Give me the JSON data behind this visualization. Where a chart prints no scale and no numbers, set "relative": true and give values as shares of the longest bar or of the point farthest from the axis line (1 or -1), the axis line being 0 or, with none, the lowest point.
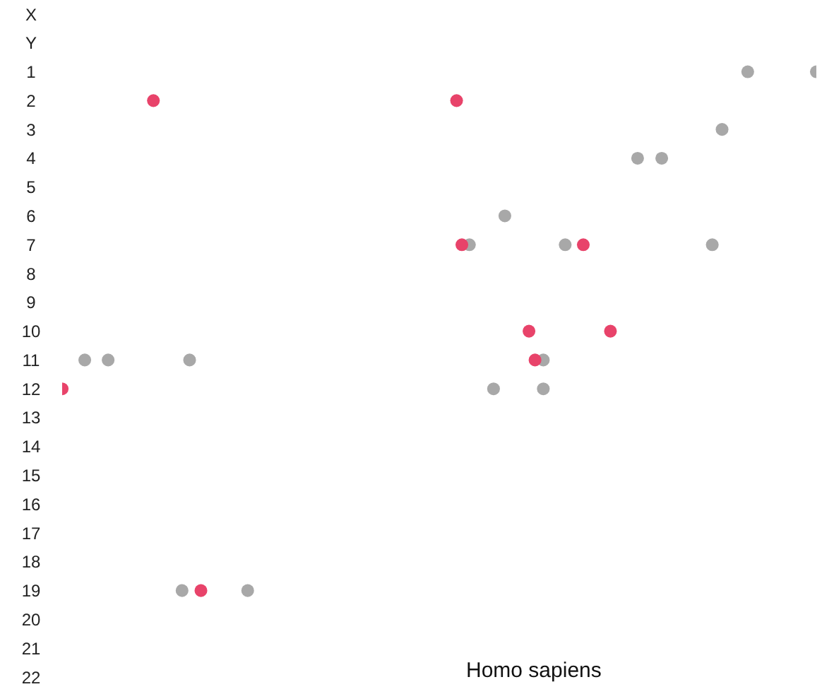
{
  "chart_data": {
    "type": "scatter",
    "orientation": "horizontal",
    "relative": true,
    "marker": "circle",
    "grid": false,
    "legend": false,
    "categories": [
      "X",
      "Y",
      "1",
      "2",
      "3",
      "4",
      "5",
      "6",
      "7",
      "8",
      "9",
      "10",
      "11",
      "12",
      "13",
      "14",
      "15",
      "16",
      "17",
      "18",
      "19",
      "20",
      "21",
      "22"
    ],
    "annotations": [
      "Homo sapiens"
    ],
    "series": [
      {
        "color": "#a8a8a8",
        "values": [
          null,
          null,
          0.909,
          null,
          0.875,
          0.763,
          null,
          0.587,
          0.54,
          null,
          null,
          null,
          0.03,
          0.572,
          null,
          null,
          null,
          null,
          null,
          null,
          0.159,
          null,
          null,
          null
        ]
      },
      {
        "color": "#a8a8a8",
        "values": [
          null,
          null,
          1,
          null,
          null,
          0.795,
          null,
          null,
          0.667,
          null,
          null,
          null,
          0.061,
          0.638,
          null,
          null,
          null,
          null,
          null,
          null,
          0.246,
          null,
          null,
          null
        ]
      },
      {
        "color": "#a8a8a8",
        "values": [
          null,
          null,
          null,
          null,
          null,
          null,
          null,
          null,
          0.862,
          null,
          null,
          null,
          0.169,
          null,
          null,
          null,
          null,
          null,
          null,
          null,
          null,
          null,
          null,
          null
        ]
      },
      {
        "color": "#a8a8a8",
        "values": [
          null,
          null,
          null,
          null,
          null,
          null,
          null,
          null,
          null,
          null,
          null,
          null,
          0.638,
          null,
          null,
          null,
          null,
          null,
          null,
          null,
          null,
          null,
          null,
          null
        ]
      },
      {
        "color": "#e8436a",
        "values": [
          null,
          null,
          null,
          0.121,
          null,
          null,
          null,
          null,
          0.53,
          null,
          null,
          0.619,
          0.627,
          0,
          null,
          null,
          null,
          null,
          null,
          null,
          0.184,
          null,
          null,
          null
        ]
      },
      {
        "color": "#e8436a",
        "values": [
          null,
          null,
          null,
          0.523,
          null,
          null,
          null,
          null,
          0.691,
          null,
          null,
          0.727,
          null,
          null,
          null,
          null,
          null,
          null,
          null,
          null,
          null,
          null,
          null,
          null
        ]
      }
    ]
  }
}
